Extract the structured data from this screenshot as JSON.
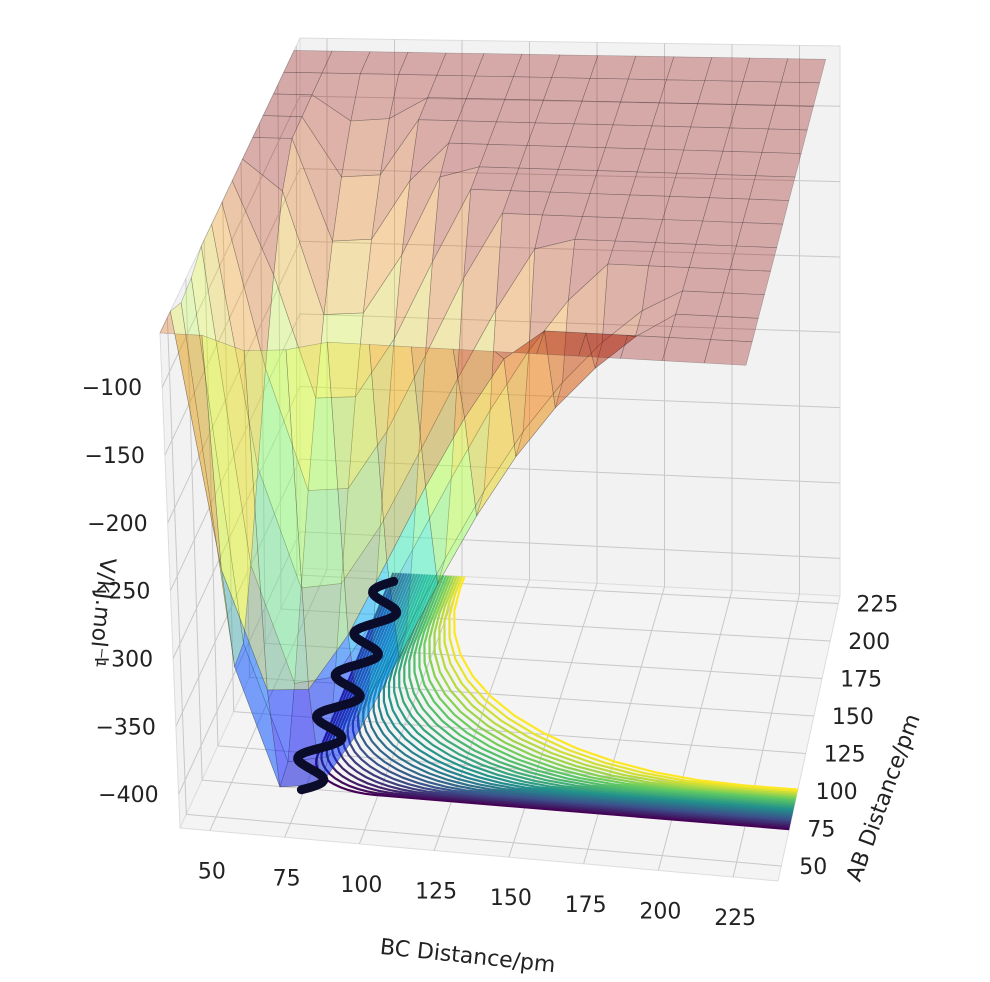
{
  "chart_data": {
    "type": "surface-3d",
    "title": "",
    "xlabel": "BC Distance/pm",
    "ylabel": "AB Distance/pm",
    "zlabel": "V/kJ.mol⁻¹",
    "x_ticks": [
      "50",
      "75",
      "100",
      "125",
      "150",
      "175",
      "200",
      "225"
    ],
    "y_ticks": [
      "50",
      "75",
      "100",
      "125",
      "150",
      "175",
      "200",
      "225"
    ],
    "z_ticks": [
      "−100",
      "−150",
      "−200",
      "−250",
      "−300",
      "−350",
      "−400"
    ],
    "x_range": [
      40,
      240
    ],
    "y_range": [
      40,
      230
    ],
    "z_range": [
      -425,
      -60
    ],
    "grid": true,
    "surface": {
      "colormap": "jet",
      "alpha": 0.3
    },
    "contour": {
      "colormap": "viridis",
      "placement": "floor"
    },
    "trajectory": {
      "color": "#0b0b2a"
    }
  }
}
